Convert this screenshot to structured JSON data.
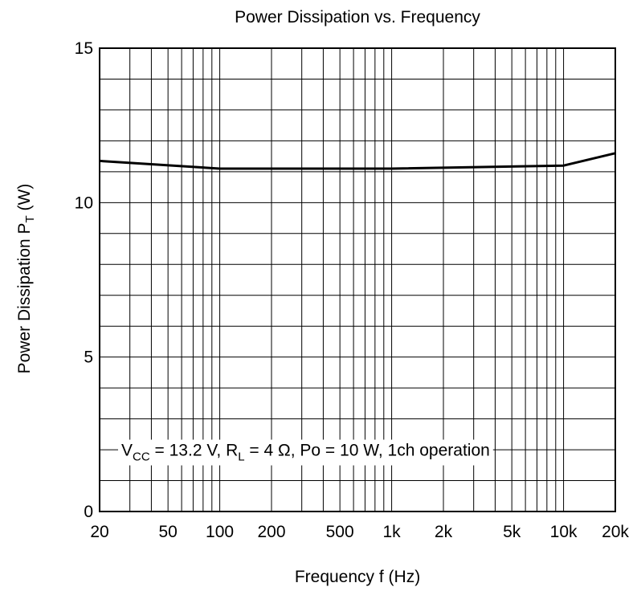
{
  "chart_data": {
    "type": "line",
    "title": "Power Dissipation vs. Frequency",
    "x_scale": "log",
    "y_scale": "linear",
    "xlim": [
      20,
      20000
    ],
    "ylim": [
      0,
      15
    ],
    "grid": true,
    "x_ticks": [
      {
        "value": 20,
        "label": "20"
      },
      {
        "value": 50,
        "label": "50"
      },
      {
        "value": 100,
        "label": "100"
      },
      {
        "value": 200,
        "label": "200"
      },
      {
        "value": 500,
        "label": "500"
      },
      {
        "value": 1000,
        "label": "1k"
      },
      {
        "value": 2000,
        "label": "2k"
      },
      {
        "value": 5000,
        "label": "5k"
      },
      {
        "value": 10000,
        "label": "10k"
      },
      {
        "value": 20000,
        "label": "20k"
      }
    ],
    "y_ticks": [
      {
        "value": 0,
        "label": "0"
      },
      {
        "value": 5,
        "label": "5"
      },
      {
        "value": 10,
        "label": "10"
      },
      {
        "value": 15,
        "label": "15"
      }
    ],
    "y_minor_step": 1,
    "xlabel": "Frequency  f  (Hz)",
    "ylabel": {
      "main": "Power Dissipation  P",
      "sub": "T",
      "unit": "  (W)"
    },
    "series": [
      {
        "x": [
          20,
          100,
          1000,
          10000,
          20000
        ],
        "y": [
          11.35,
          11.1,
          11.1,
          11.2,
          11.6
        ]
      }
    ],
    "annotation": {
      "parts": [
        {
          "t": "V",
          "sub": false
        },
        {
          "t": "CC",
          "sub": true
        },
        {
          "t": " = 13.2 V, R",
          "sub": false
        },
        {
          "t": "L",
          "sub": true
        },
        {
          "t": " = 4 Ω, Po = 10 W, 1ch operation",
          "sub": false
        }
      ],
      "x": 20,
      "y": 1
    }
  }
}
